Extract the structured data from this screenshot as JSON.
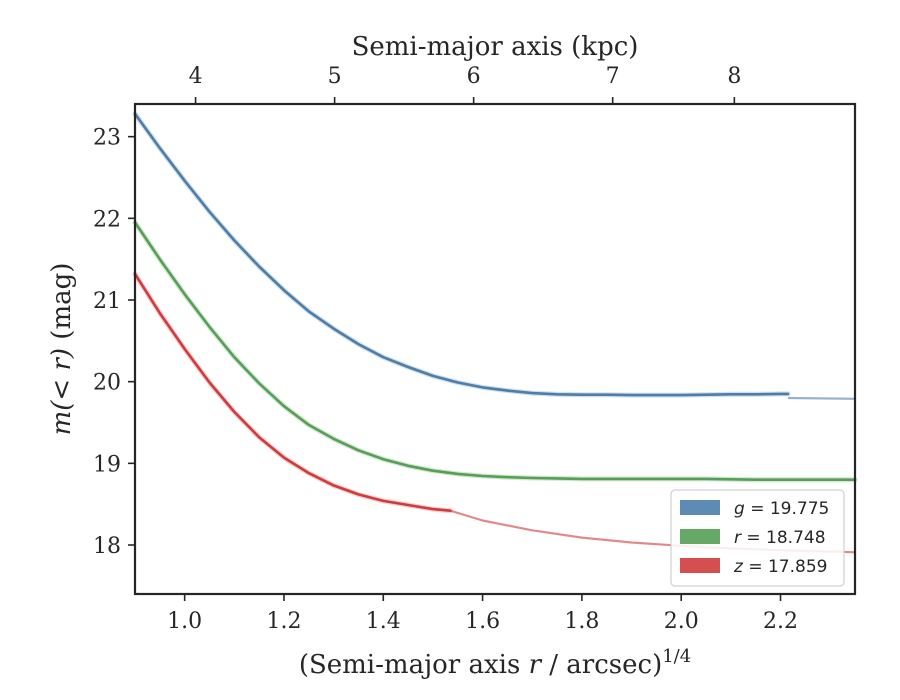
{
  "chart_data": {
    "type": "line",
    "xlabel": "(Semi-major axis r / arcsec)^1/4",
    "xlabel_parts": {
      "pre": "(Semi-major axis ",
      "var": "r",
      "post": " / arcsec)",
      "sup": "1/4"
    },
    "ylabel": "m(< r) (mag)",
    "ylabel_parts": {
      "math": "m(< r)",
      "unit": " (mag)"
    },
    "top_xlabel": "Semi-major axis (kpc)",
    "xlim": [
      0.9,
      2.35
    ],
    "ylim": [
      23.4,
      17.4
    ],
    "y_inverted": true,
    "x_ticks": [
      1.0,
      1.2,
      1.4,
      1.6,
      1.8,
      2.0,
      2.2
    ],
    "x_tick_labels": [
      "1.0",
      "1.2",
      "1.4",
      "1.6",
      "1.8",
      "2.0",
      "2.2"
    ],
    "y_ticks": [
      18,
      19,
      20,
      21,
      22,
      23
    ],
    "y_tick_labels": [
      "18",
      "19",
      "20",
      "21",
      "22",
      "23"
    ],
    "top_x_ticks": [
      4,
      5,
      6,
      7,
      8
    ],
    "top_x_tick_labels": [
      "4",
      "5",
      "6",
      "7",
      "8"
    ],
    "top_x_tick_positions_bottom_units": [
      1.022,
      1.302,
      1.582,
      1.862,
      2.107
    ],
    "grid": false,
    "legend_position": "lower-right",
    "series": [
      {
        "name": "g = 19.775",
        "band": "g",
        "total": "19.775",
        "color": "#4c7eab",
        "x": [
          0.9,
          0.95,
          1.0,
          1.05,
          1.1,
          1.15,
          1.2,
          1.25,
          1.3,
          1.35,
          1.4,
          1.45,
          1.5,
          1.55,
          1.6,
          1.65,
          1.7,
          1.75,
          1.8,
          1.85,
          1.9,
          1.95,
          2.0,
          2.05,
          2.1,
          2.15,
          2.2,
          2.215
        ],
        "y": [
          23.28,
          22.86,
          22.46,
          22.08,
          21.73,
          21.41,
          21.12,
          20.86,
          20.65,
          20.46,
          20.3,
          20.18,
          20.07,
          19.99,
          19.93,
          19.89,
          19.86,
          19.845,
          19.84,
          19.84,
          19.835,
          19.835,
          19.835,
          19.84,
          19.845,
          19.845,
          19.85,
          19.85
        ],
        "extrapolation_x": [
          2.215,
          2.35
        ],
        "extrapolation_y": [
          19.8,
          19.79
        ]
      },
      {
        "name": "r = 18.748",
        "band": "r",
        "total": "18.748",
        "color": "#55a055",
        "x": [
          0.9,
          0.95,
          1.0,
          1.05,
          1.1,
          1.15,
          1.2,
          1.25,
          1.3,
          1.35,
          1.4,
          1.45,
          1.5,
          1.55,
          1.6,
          1.65,
          1.7,
          1.75,
          1.8,
          1.85,
          1.9,
          1.95,
          2.0,
          2.05,
          2.1,
          2.15,
          2.2,
          2.25,
          2.3,
          2.35
        ],
        "y": [
          21.95,
          21.5,
          21.07,
          20.67,
          20.3,
          19.98,
          19.7,
          19.47,
          19.3,
          19.16,
          19.05,
          18.97,
          18.91,
          18.87,
          18.845,
          18.83,
          18.82,
          18.815,
          18.81,
          18.81,
          18.81,
          18.81,
          18.81,
          18.81,
          18.805,
          18.8,
          18.8,
          18.8,
          18.8,
          18.8
        ]
      },
      {
        "name": "z = 17.859",
        "band": "z",
        "total": "17.859",
        "color": "#d03b3d",
        "x": [
          0.9,
          0.95,
          1.0,
          1.05,
          1.1,
          1.15,
          1.2,
          1.25,
          1.3,
          1.35,
          1.4,
          1.45,
          1.5,
          1.535
        ],
        "y": [
          21.32,
          20.84,
          20.4,
          19.99,
          19.63,
          19.32,
          19.07,
          18.88,
          18.73,
          18.62,
          18.54,
          18.49,
          18.44,
          18.42
        ],
        "extrapolation_x": [
          1.535,
          1.6,
          1.7,
          1.8,
          1.9,
          2.0,
          2.1,
          2.2,
          2.3,
          2.35
        ],
        "extrapolation_y": [
          18.42,
          18.3,
          18.18,
          18.09,
          18.03,
          17.99,
          17.96,
          17.935,
          17.92,
          17.91
        ]
      }
    ]
  }
}
